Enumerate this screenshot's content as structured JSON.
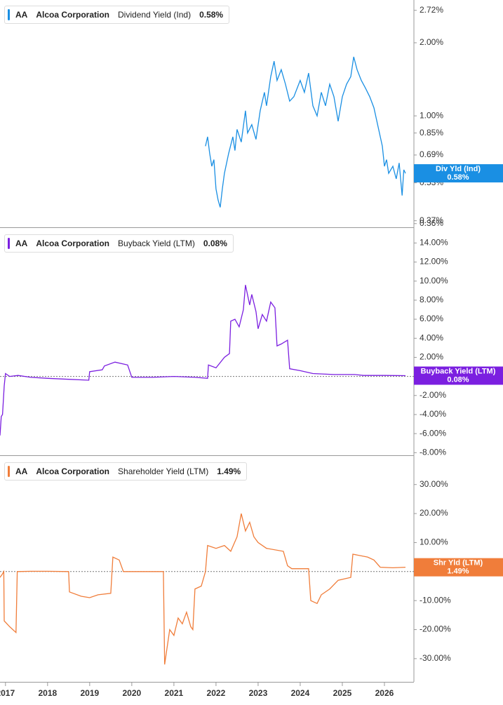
{
  "chart_data": [
    {
      "type": "line",
      "ticker": "AA",
      "company": "Alcoa Corporation",
      "log_scale": true,
      "zero_line": false,
      "xlim": [
        2016.87,
        2026.7
      ],
      "ylim": [
        0.35,
        3.0
      ],
      "yticks": [
        {
          "value": 2.72,
          "label": "2.72%"
        },
        {
          "value": 2.0,
          "label": "2.00%"
        },
        {
          "value": 1.0,
          "label": "1.00%"
        },
        {
          "value": 0.85,
          "label": "0.85%"
        },
        {
          "value": 0.69,
          "label": "0.69%"
        },
        {
          "value": 0.53,
          "label": "0.53%"
        },
        {
          "value": 0.37,
          "label": "0.37%"
        },
        {
          "value": 0.36,
          "label": "0.36%"
        }
      ],
      "x": [
        2021.75,
        2021.8,
        2021.85,
        2021.9,
        2021.95,
        2022.0,
        2022.05,
        2022.1,
        2022.15,
        2022.2,
        2022.3,
        2022.4,
        2022.45,
        2022.5,
        2022.6,
        2022.7,
        2022.75,
        2022.85,
        2022.95,
        2023.05,
        2023.15,
        2023.2,
        2023.3,
        2023.38,
        2023.45,
        2023.55,
        2023.65,
        2023.75,
        2023.85,
        2024.0,
        2024.1,
        2024.2,
        2024.3,
        2024.4,
        2024.5,
        2024.6,
        2024.7,
        2024.8,
        2024.9,
        2025.0,
        2025.1,
        2025.2,
        2025.27,
        2025.35,
        2025.45,
        2025.55,
        2025.65,
        2025.75,
        2025.85,
        2025.95,
        2026.0,
        2026.05,
        2026.1,
        2026.2,
        2026.28,
        2026.35,
        2026.42,
        2026.46,
        2026.5
      ],
      "series": [
        {
          "name": "Dividend Yield (Ind)",
          "short_name": "Div Yld (Ind)",
          "color": "#1a8fe3",
          "values": [
            0.75,
            0.82,
            0.7,
            0.62,
            0.66,
            0.5,
            0.45,
            0.42,
            0.5,
            0.58,
            0.7,
            0.82,
            0.72,
            0.88,
            0.78,
            1.05,
            0.85,
            0.92,
            0.8,
            1.05,
            1.25,
            1.1,
            1.45,
            1.68,
            1.4,
            1.55,
            1.35,
            1.15,
            1.2,
            1.4,
            1.25,
            1.5,
            1.1,
            1.0,
            1.25,
            1.1,
            1.35,
            1.2,
            0.95,
            1.2,
            1.35,
            1.45,
            1.75,
            1.55,
            1.4,
            1.3,
            1.2,
            1.08,
            0.9,
            0.75,
            0.62,
            0.66,
            0.58,
            0.62,
            0.55,
            0.64,
            0.47,
            0.6,
            0.58
          ],
          "current": {
            "value": 0.58,
            "label": "0.58%"
          }
        }
      ]
    },
    {
      "type": "line",
      "ticker": "AA",
      "company": "Alcoa Corporation",
      "log_scale": false,
      "zero_line": true,
      "xlim": [
        2016.87,
        2026.7
      ],
      "ylim": [
        -8.2,
        15.5
      ],
      "yticks": [
        {
          "value": 14,
          "label": "14.00%"
        },
        {
          "value": 12,
          "label": "12.00%"
        },
        {
          "value": 10,
          "label": "10.00%"
        },
        {
          "value": 8,
          "label": "8.00%"
        },
        {
          "value": 6,
          "label": "6.00%"
        },
        {
          "value": 4,
          "label": "4.00%"
        },
        {
          "value": 2,
          "label": "2.00%"
        },
        {
          "value": -2,
          "label": "-2.00%"
        },
        {
          "value": -4,
          "label": "-4.00%"
        },
        {
          "value": -6,
          "label": "-6.00%"
        },
        {
          "value": -8,
          "label": "-8.00%"
        }
      ],
      "x": [
        2016.87,
        2016.9,
        2016.93,
        2016.97,
        2017.0,
        2017.1,
        2017.3,
        2017.6,
        2018.0,
        2018.5,
        2018.98,
        2019.0,
        2019.3,
        2019.35,
        2019.6,
        2019.9,
        2020.0,
        2020.5,
        2021.0,
        2021.5,
        2021.8,
        2021.82,
        2022.0,
        2022.2,
        2022.32,
        2022.35,
        2022.45,
        2022.55,
        2022.65,
        2022.7,
        2022.8,
        2022.85,
        2022.95,
        2023.0,
        2023.1,
        2023.2,
        2023.3,
        2023.4,
        2023.45,
        2023.55,
        2023.7,
        2023.75,
        2024.0,
        2024.3,
        2024.8,
        2025.3,
        2025.5,
        2026.0,
        2026.5
      ],
      "series": [
        {
          "name": "Buyback Yield (LTM)",
          "short_name": "Buyback Yield (LTM)",
          "color": "#7b1fe0",
          "values": [
            -6.2,
            -4.2,
            -4.0,
            -1.0,
            0.3,
            0,
            0.1,
            -0.1,
            -0.2,
            -0.3,
            -0.4,
            0.5,
            0.7,
            1.1,
            1.5,
            1.2,
            -0.1,
            -0.1,
            0,
            -0.1,
            -0.2,
            1.2,
            0.9,
            2.0,
            2.4,
            5.8,
            6.0,
            5.2,
            7.0,
            9.6,
            7.5,
            8.6,
            6.8,
            5.0,
            6.5,
            5.8,
            7.8,
            7.2,
            3.2,
            3.4,
            3.8,
            0.8,
            0.6,
            0.3,
            0.2,
            0.2,
            0.1,
            0.1,
            0.08
          ],
          "current": {
            "value": 0.08,
            "label": "0.08%"
          }
        }
      ]
    },
    {
      "type": "line",
      "ticker": "AA",
      "company": "Alcoa Corporation",
      "log_scale": false,
      "zero_line": true,
      "xlim": [
        2016.87,
        2026.7
      ],
      "xticks": [
        2017,
        2018,
        2019,
        2020,
        2021,
        2022,
        2023,
        2024,
        2025,
        2026
      ],
      "ylim": [
        -38,
        39.6
      ],
      "yticks": [
        {
          "value": 30,
          "label": "30.00%"
        },
        {
          "value": 20,
          "label": "20.00%"
        },
        {
          "value": 10,
          "label": "10.00%"
        },
        {
          "value": -10,
          "label": "-10.00%"
        },
        {
          "value": -20,
          "label": "-20.00%"
        },
        {
          "value": -30,
          "label": "-30.00%"
        }
      ],
      "x": [
        2016.87,
        2016.92,
        2016.96,
        2016.97,
        2017.1,
        2017.25,
        2017.28,
        2017.6,
        2018.0,
        2018.5,
        2018.52,
        2018.8,
        2019.0,
        2019.2,
        2019.5,
        2019.55,
        2019.7,
        2019.8,
        2020.2,
        2020.75,
        2020.78,
        2020.9,
        2021.0,
        2021.1,
        2021.2,
        2021.3,
        2021.4,
        2021.45,
        2021.5,
        2021.65,
        2021.75,
        2021.8,
        2022.0,
        2022.2,
        2022.35,
        2022.5,
        2022.6,
        2022.7,
        2022.8,
        2022.9,
        2023.0,
        2023.2,
        2023.6,
        2023.7,
        2023.8,
        2024.2,
        2024.25,
        2024.4,
        2024.5,
        2024.7,
        2024.9,
        2025.2,
        2025.25,
        2025.6,
        2025.75,
        2025.9,
        2026.2,
        2026.5
      ],
      "series": [
        {
          "name": "Shareholder Yield (LTM)",
          "short_name": "Shr Yld (LTM)",
          "color": "#f07d3a",
          "values": [
            -2,
            -1,
            0,
            -17,
            -19,
            -21,
            0,
            0.1,
            0.1,
            0,
            -7,
            -8.5,
            -9,
            -8,
            -7.5,
            5,
            4,
            0,
            0,
            0,
            -32,
            -20,
            -22,
            -16,
            -18,
            -14,
            -19,
            -20,
            -6,
            -5,
            0,
            9,
            8,
            9,
            7,
            12,
            20,
            14,
            17,
            12,
            10,
            8,
            7,
            2,
            1,
            1,
            -10,
            -11,
            -8,
            -6,
            -3,
            -2,
            6,
            5,
            4,
            1.5,
            1.3,
            1.49
          ],
          "current": {
            "value": 1.49,
            "label": "1.49%"
          }
        }
      ]
    }
  ]
}
